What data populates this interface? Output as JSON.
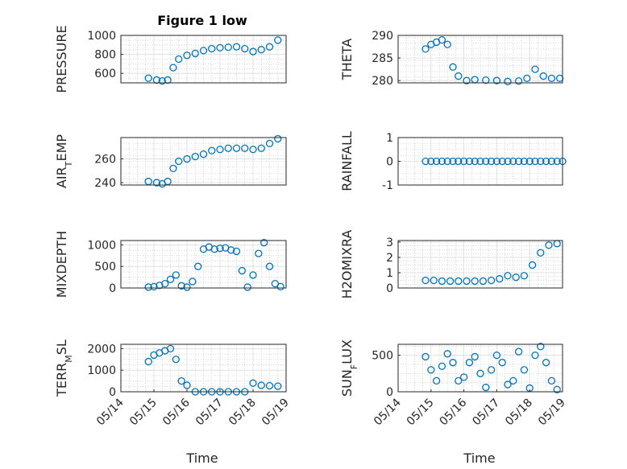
{
  "figure": {
    "title": "Figure 1 low",
    "marker_color": "#0072BD",
    "xlabel": "Time"
  },
  "chart_data": [
    {
      "type": "scatter",
      "ylabel": "PRESSURE",
      "xlim": [
        "05/14",
        "05/19"
      ],
      "ylim": [
        500,
        1000
      ],
      "yticks": [
        600,
        800,
        1000
      ],
      "grid": true,
      "x": [
        "05/14 20:00",
        "05/15 02:00",
        "05/15 06:00",
        "05/15 10:00",
        "05/15 14:00",
        "05/15 18:00",
        "05/16 00:00",
        "05/16 06:00",
        "05/16 12:00",
        "05/16 18:00",
        "05/17 00:00",
        "05/17 06:00",
        "05/17 12:00",
        "05/17 18:00",
        "05/18 00:00",
        "05/18 06:00",
        "05/18 12:00",
        "05/18 18:00"
      ],
      "y": [
        550,
        530,
        520,
        530,
        660,
        750,
        790,
        810,
        840,
        860,
        870,
        875,
        880,
        860,
        830,
        850,
        880,
        950
      ]
    },
    {
      "type": "scatter",
      "ylabel": "THETA",
      "xlim": [
        "05/14",
        "05/19"
      ],
      "ylim": [
        279.5,
        290
      ],
      "yticks": [
        280,
        285,
        290
      ],
      "grid": true,
      "x": [
        "05/14 20:00",
        "05/15 00:00",
        "05/15 04:00",
        "05/15 08:00",
        "05/15 12:00",
        "05/15 16:00",
        "05/15 20:00",
        "05/16 02:00",
        "05/16 08:00",
        "05/16 16:00",
        "05/17 00:00",
        "05/17 08:00",
        "05/17 16:00",
        "05/17 22:00",
        "05/18 04:00",
        "05/18 10:00",
        "05/18 16:00",
        "05/18 22:00"
      ],
      "y": [
        287,
        288,
        288.5,
        289,
        288,
        283,
        281,
        280,
        280.2,
        280.1,
        280,
        279.8,
        279.9,
        280.5,
        282.5,
        281,
        280.5,
        280.5
      ]
    },
    {
      "type": "scatter",
      "ylabel": "AIR_TEMP",
      "xlim": [
        "05/14",
        "05/19"
      ],
      "ylim": [
        238,
        278
      ],
      "yticks": [
        240,
        260
      ],
      "grid": true,
      "x": [
        "05/14 20:00",
        "05/15 02:00",
        "05/15 06:00",
        "05/15 10:00",
        "05/15 14:00",
        "05/15 18:00",
        "05/16 00:00",
        "05/16 06:00",
        "05/16 12:00",
        "05/16 18:00",
        "05/17 00:00",
        "05/17 06:00",
        "05/17 12:00",
        "05/17 18:00",
        "05/18 00:00",
        "05/18 06:00",
        "05/18 12:00",
        "05/18 18:00"
      ],
      "y": [
        241,
        240,
        239,
        241,
        252,
        258,
        260,
        262,
        264,
        267,
        268,
        269,
        269,
        269,
        268,
        269,
        273,
        277
      ]
    },
    {
      "type": "scatter",
      "ylabel": "RAINFALL",
      "xlim": [
        "05/14",
        "05/19"
      ],
      "ylim": [
        -1,
        1
      ],
      "yticks": [
        -1,
        0,
        1
      ],
      "grid": true,
      "x": [
        "05/14 20:00",
        "05/15 00:00",
        "05/15 04:00",
        "05/15 08:00",
        "05/15 12:00",
        "05/15 16:00",
        "05/15 20:00",
        "05/16 00:00",
        "05/16 04:00",
        "05/16 08:00",
        "05/16 12:00",
        "05/16 16:00",
        "05/16 20:00",
        "05/17 00:00",
        "05/17 04:00",
        "05/17 08:00",
        "05/17 12:00",
        "05/17 16:00",
        "05/17 20:00",
        "05/18 00:00",
        "05/18 04:00",
        "05/18 08:00",
        "05/18 12:00",
        "05/18 16:00",
        "05/18 20:00",
        "05/19 00:00"
      ],
      "y": [
        0,
        0,
        0,
        0,
        0,
        0,
        0,
        0,
        0,
        0,
        0,
        0,
        0,
        0,
        0,
        0,
        0,
        0,
        0,
        0,
        0,
        0,
        0,
        0,
        0,
        0
      ]
    },
    {
      "type": "scatter",
      "ylabel": "MIXDEPTH",
      "xlim": [
        "05/14",
        "05/19"
      ],
      "ylim": [
        0,
        1100
      ],
      "yticks": [
        0,
        500,
        1000
      ],
      "grid": true,
      "x": [
        "05/14 20:00",
        "05/15 00:00",
        "05/15 04:00",
        "05/15 08:00",
        "05/15 12:00",
        "05/15 16:00",
        "05/15 20:00",
        "05/16 00:00",
        "05/16 04:00",
        "05/16 08:00",
        "05/16 12:00",
        "05/16 16:00",
        "05/16 20:00",
        "05/17 00:00",
        "05/17 04:00",
        "05/17 08:00",
        "05/17 12:00",
        "05/17 16:00",
        "05/17 20:00",
        "05/18 00:00",
        "05/18 04:00",
        "05/18 08:00",
        "05/18 12:00",
        "05/18 16:00",
        "05/18 20:00"
      ],
      "y": [
        20,
        30,
        60,
        100,
        200,
        300,
        50,
        20,
        150,
        500,
        900,
        950,
        900,
        920,
        930,
        880,
        850,
        400,
        20,
        300,
        800,
        1050,
        500,
        100,
        30
      ]
    },
    {
      "type": "scatter",
      "ylabel": "H2OMIXRA",
      "xlim": [
        "05/14",
        "05/19"
      ],
      "ylim": [
        0,
        3.1
      ],
      "yticks": [
        0,
        1,
        2,
        3
      ],
      "grid": true,
      "x": [
        "05/14 20:00",
        "05/15 02:00",
        "05/15 08:00",
        "05/15 14:00",
        "05/15 20:00",
        "05/16 02:00",
        "05/16 08:00",
        "05/16 14:00",
        "05/16 20:00",
        "05/17 02:00",
        "05/17 08:00",
        "05/17 14:00",
        "05/17 20:00",
        "05/18 02:00",
        "05/18 08:00",
        "05/18 14:00",
        "05/18 20:00"
      ],
      "y": [
        0.5,
        0.5,
        0.45,
        0.45,
        0.45,
        0.45,
        0.45,
        0.45,
        0.5,
        0.6,
        0.8,
        0.7,
        0.8,
        1.5,
        2.3,
        2.8,
        2.9
      ]
    },
    {
      "type": "scatter",
      "ylabel": "TERR_MSL",
      "xlim": [
        "05/14",
        "05/19"
      ],
      "ylim": [
        0,
        2200
      ],
      "yticks": [
        0,
        1000,
        2000
      ],
      "grid": true,
      "x": [
        "05/14 20:00",
        "05/15 00:00",
        "05/15 04:00",
        "05/15 08:00",
        "05/15 12:00",
        "05/15 16:00",
        "05/15 20:00",
        "05/16 00:00",
        "05/16 06:00",
        "05/16 12:00",
        "05/16 18:00",
        "05/17 00:00",
        "05/17 06:00",
        "05/17 12:00",
        "05/17 18:00",
        "05/18 00:00",
        "05/18 06:00",
        "05/18 12:00",
        "05/18 18:00"
      ],
      "y": [
        1400,
        1700,
        1800,
        1900,
        2000,
        1500,
        500,
        300,
        0,
        0,
        0,
        0,
        0,
        0,
        0,
        400,
        300,
        280,
        260
      ]
    },
    {
      "type": "scatter",
      "ylabel": "SUN_FLUX",
      "xlim": [
        "05/14",
        "05/19"
      ],
      "ylim": [
        0,
        650
      ],
      "yticks": [
        0,
        500
      ],
      "xticks": [
        "05/14",
        "05/15",
        "05/16",
        "05/17",
        "05/18",
        "05/19"
      ],
      "grid": true,
      "x": [
        "05/14 20:00",
        "05/15 00:00",
        "05/15 04:00",
        "05/15 08:00",
        "05/15 12:00",
        "05/15 16:00",
        "05/15 20:00",
        "05/16 00:00",
        "05/16 04:00",
        "05/16 08:00",
        "05/16 12:00",
        "05/16 16:00",
        "05/16 20:00",
        "05/17 00:00",
        "05/17 04:00",
        "05/17 08:00",
        "05/17 12:00",
        "05/17 16:00",
        "05/17 20:00",
        "05/18 00:00",
        "05/18 04:00",
        "05/18 08:00",
        "05/18 12:00",
        "05/18 16:00",
        "05/18 20:00"
      ],
      "y": [
        480,
        300,
        150,
        350,
        520,
        400,
        150,
        200,
        400,
        480,
        250,
        60,
        300,
        500,
        400,
        100,
        150,
        550,
        300,
        50,
        500,
        620,
        400,
        150,
        30
      ]
    }
  ]
}
